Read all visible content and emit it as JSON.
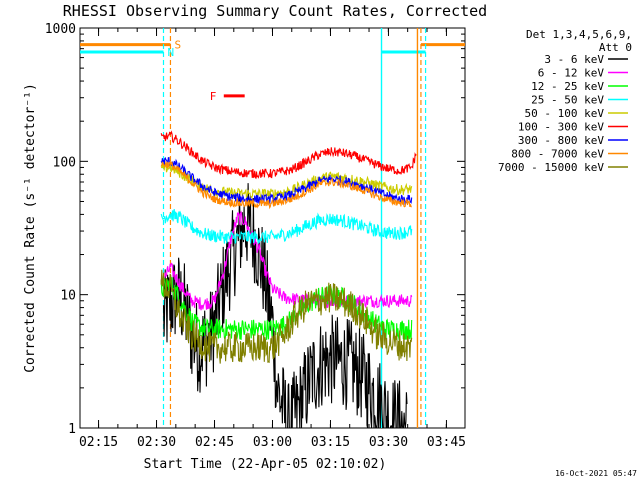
{
  "chart_data": {
    "type": "line",
    "title": "RHESSI Observing Summary Count Rates, Corrected",
    "xlabel": "Start Time (22-Apr-05 02:10:02)",
    "ylabel": "Corrected Count Rate (s⁻¹ detector⁻¹)",
    "y_scale": "log",
    "ylim": [
      1,
      1000
    ],
    "y_ticks": [
      1,
      10,
      100,
      1000
    ],
    "y_tick_labels": [
      "1",
      "10",
      "100",
      "1000"
    ],
    "xlim": [
      2.17,
      3.83
    ],
    "x_ticks": [
      2.25,
      2.5,
      2.75,
      3.0,
      3.25,
      3.5,
      3.75
    ],
    "x_tick_labels": [
      "02:15",
      "02:30",
      "02:45",
      "03:00",
      "03:15",
      "03:30",
      "03:45"
    ],
    "legend": {
      "placement": "right",
      "header": [
        "Det 1,3,4,5,6,9,",
        "Att 0"
      ]
    },
    "timestamp": "16-Oct-2021 05:47",
    "series": [
      {
        "name": "3 - 6 keV",
        "color": "#000000",
        "points": [
          [
            2.53,
            6.5
          ],
          [
            2.56,
            8.5
          ],
          [
            2.59,
            10
          ],
          [
            2.62,
            8
          ],
          [
            2.65,
            5
          ],
          [
            2.68,
            4
          ],
          [
            2.72,
            4.5
          ],
          [
            2.75,
            6
          ],
          [
            2.8,
            14
          ],
          [
            2.85,
            25
          ],
          [
            2.88,
            35
          ],
          [
            2.92,
            28
          ],
          [
            2.96,
            15
          ],
          [
            3.0,
            6
          ],
          [
            3.02,
            2
          ],
          [
            3.07,
            1
          ],
          [
            3.12,
            1.5
          ],
          [
            3.17,
            2.5
          ],
          [
            3.22,
            3.2
          ],
          [
            3.27,
            3.2
          ],
          [
            3.33,
            3
          ],
          [
            3.38,
            2.5
          ],
          [
            3.42,
            2
          ],
          [
            3.47,
            1.5
          ],
          [
            3.5,
            1.2
          ],
          [
            3.58,
            1
          ]
        ]
      },
      {
        "name": "6 - 12 keV",
        "color": "#ff00ff",
        "points": [
          [
            2.52,
            12
          ],
          [
            2.56,
            16
          ],
          [
            2.6,
            12
          ],
          [
            2.65,
            9
          ],
          [
            2.7,
            8.5
          ],
          [
            2.75,
            9
          ],
          [
            2.79,
            15
          ],
          [
            2.82,
            26
          ],
          [
            2.85,
            38
          ],
          [
            2.88,
            36
          ],
          [
            2.91,
            28
          ],
          [
            2.94,
            22
          ],
          [
            2.97,
            15
          ],
          [
            3.0,
            11
          ],
          [
            3.05,
            9.5
          ],
          [
            3.15,
            9
          ],
          [
            3.3,
            9
          ],
          [
            3.42,
            9
          ],
          [
            3.6,
            9
          ]
        ]
      },
      {
        "name": "12 - 25 keV",
        "color": "#00ff00",
        "points": [
          [
            2.52,
            11
          ],
          [
            2.56,
            12
          ],
          [
            2.59,
            10
          ],
          [
            2.62,
            8
          ],
          [
            2.66,
            6
          ],
          [
            2.72,
            5.5
          ],
          [
            2.8,
            5.5
          ],
          [
            2.9,
            5.5
          ],
          [
            3.0,
            5.5
          ],
          [
            3.06,
            6
          ],
          [
            3.1,
            7
          ],
          [
            3.15,
            8.5
          ],
          [
            3.2,
            9.5
          ],
          [
            3.25,
            10
          ],
          [
            3.3,
            9.5
          ],
          [
            3.35,
            8.5
          ],
          [
            3.4,
            7
          ],
          [
            3.45,
            6
          ],
          [
            3.5,
            5.5
          ],
          [
            3.55,
            5.5
          ],
          [
            3.6,
            5.5
          ]
        ]
      },
      {
        "name": "25 - 50 keV",
        "color": "#00ffff",
        "points": [
          [
            2.52,
            37
          ],
          [
            2.56,
            40
          ],
          [
            2.6,
            38
          ],
          [
            2.64,
            33
          ],
          [
            2.68,
            30
          ],
          [
            2.72,
            28
          ],
          [
            2.8,
            27
          ],
          [
            2.9,
            27
          ],
          [
            3.0,
            27
          ],
          [
            3.08,
            29
          ],
          [
            3.15,
            33
          ],
          [
            3.2,
            36
          ],
          [
            3.25,
            37
          ],
          [
            3.3,
            36
          ],
          [
            3.35,
            34
          ],
          [
            3.4,
            32
          ],
          [
            3.45,
            30
          ],
          [
            3.5,
            29
          ],
          [
            3.55,
            29
          ],
          [
            3.6,
            30
          ]
        ]
      },
      {
        "name": "50 - 100 keV",
        "color": "#cccc00",
        "points": [
          [
            2.52,
            88
          ],
          [
            2.56,
            90
          ],
          [
            2.6,
            82
          ],
          [
            2.65,
            72
          ],
          [
            2.7,
            64
          ],
          [
            2.75,
            60
          ],
          [
            2.82,
            58
          ],
          [
            2.9,
            57
          ],
          [
            3.0,
            57
          ],
          [
            3.08,
            60
          ],
          [
            3.15,
            68
          ],
          [
            3.2,
            74
          ],
          [
            3.25,
            77
          ],
          [
            3.3,
            76
          ],
          [
            3.35,
            73
          ],
          [
            3.4,
            70
          ],
          [
            3.45,
            66
          ],
          [
            3.5,
            63
          ],
          [
            3.55,
            61
          ],
          [
            3.6,
            62
          ]
        ]
      },
      {
        "name": "100 - 300 keV",
        "color": "#ff0000",
        "points": [
          [
            2.52,
            150
          ],
          [
            2.56,
            155
          ],
          [
            2.6,
            140
          ],
          [
            2.65,
            118
          ],
          [
            2.7,
            100
          ],
          [
            2.75,
            90
          ],
          [
            2.82,
            84
          ],
          [
            2.9,
            81
          ],
          [
            3.0,
            81
          ],
          [
            3.08,
            86
          ],
          [
            3.15,
            100
          ],
          [
            3.2,
            112
          ],
          [
            3.25,
            118
          ],
          [
            3.3,
            116
          ],
          [
            3.35,
            110
          ],
          [
            3.4,
            102
          ],
          [
            3.45,
            94
          ],
          [
            3.5,
            88
          ],
          [
            3.55,
            85
          ],
          [
            3.6,
            90
          ],
          [
            3.62,
            115
          ]
        ]
      },
      {
        "name": "300 - 800 keV",
        "color": "#0000ff",
        "points": [
          [
            2.52,
            100
          ],
          [
            2.56,
            100
          ],
          [
            2.6,
            90
          ],
          [
            2.65,
            76
          ],
          [
            2.7,
            65
          ],
          [
            2.75,
            58
          ],
          [
            2.82,
            54
          ],
          [
            2.9,
            52
          ],
          [
            3.0,
            52
          ],
          [
            3.08,
            56
          ],
          [
            3.15,
            64
          ],
          [
            3.2,
            71
          ],
          [
            3.25,
            74
          ],
          [
            3.3,
            72
          ],
          [
            3.35,
            68
          ],
          [
            3.4,
            64
          ],
          [
            3.45,
            59
          ],
          [
            3.5,
            55
          ],
          [
            3.55,
            52
          ],
          [
            3.6,
            52
          ]
        ]
      },
      {
        "name": "800 - 7000 keV",
        "color": "#ff8800",
        "points": [
          [
            2.52,
            95
          ],
          [
            2.56,
            95
          ],
          [
            2.6,
            84
          ],
          [
            2.65,
            70
          ],
          [
            2.7,
            58
          ],
          [
            2.75,
            52
          ],
          [
            2.82,
            49
          ],
          [
            2.9,
            48
          ],
          [
            3.0,
            48
          ],
          [
            3.08,
            52
          ],
          [
            3.15,
            60
          ],
          [
            3.2,
            67
          ],
          [
            3.25,
            70
          ],
          [
            3.3,
            68
          ],
          [
            3.35,
            64
          ],
          [
            3.4,
            60
          ],
          [
            3.45,
            55
          ],
          [
            3.5,
            51
          ],
          [
            3.55,
            49
          ],
          [
            3.6,
            48
          ]
        ]
      },
      {
        "name": "7000 - 15000 keV",
        "color": "#808000",
        "points": [
          [
            2.52,
            12
          ],
          [
            2.56,
            11
          ],
          [
            2.6,
            7
          ],
          [
            2.65,
            5
          ],
          [
            2.72,
            4
          ],
          [
            2.8,
            4
          ],
          [
            2.9,
            4
          ],
          [
            3.0,
            4
          ],
          [
            3.05,
            5
          ],
          [
            3.1,
            7
          ],
          [
            3.15,
            8.5
          ],
          [
            3.2,
            9
          ],
          [
            3.25,
            9.5
          ],
          [
            3.3,
            9
          ],
          [
            3.35,
            8
          ],
          [
            3.4,
            6.5
          ],
          [
            3.45,
            5
          ],
          [
            3.5,
            4.5
          ],
          [
            3.55,
            4.2
          ],
          [
            3.6,
            4
          ]
        ]
      }
    ],
    "markers": [
      {
        "label": "S",
        "color": "#ff8800",
        "dashed_at": [
          2.56,
          3.64
        ],
        "bars": [
          [
            2.17,
            2.56
          ],
          [
            3.64,
            3.83
          ]
        ],
        "level": 750
      },
      {
        "label": "N",
        "color": "#00ffff",
        "dashed_at": [
          2.53,
          3.66
        ],
        "bars": [
          [
            2.17,
            2.53
          ],
          [
            3.47,
            3.66
          ]
        ],
        "level": 660
      },
      {
        "label": "F",
        "color": "#ff0000",
        "bars": [
          [
            2.79,
            2.88
          ]
        ],
        "level": 310
      }
    ],
    "solid_lines": [
      {
        "x": 3.47,
        "color": "#00ffff"
      },
      {
        "x": 3.625,
        "color": "#ff8800"
      }
    ]
  }
}
